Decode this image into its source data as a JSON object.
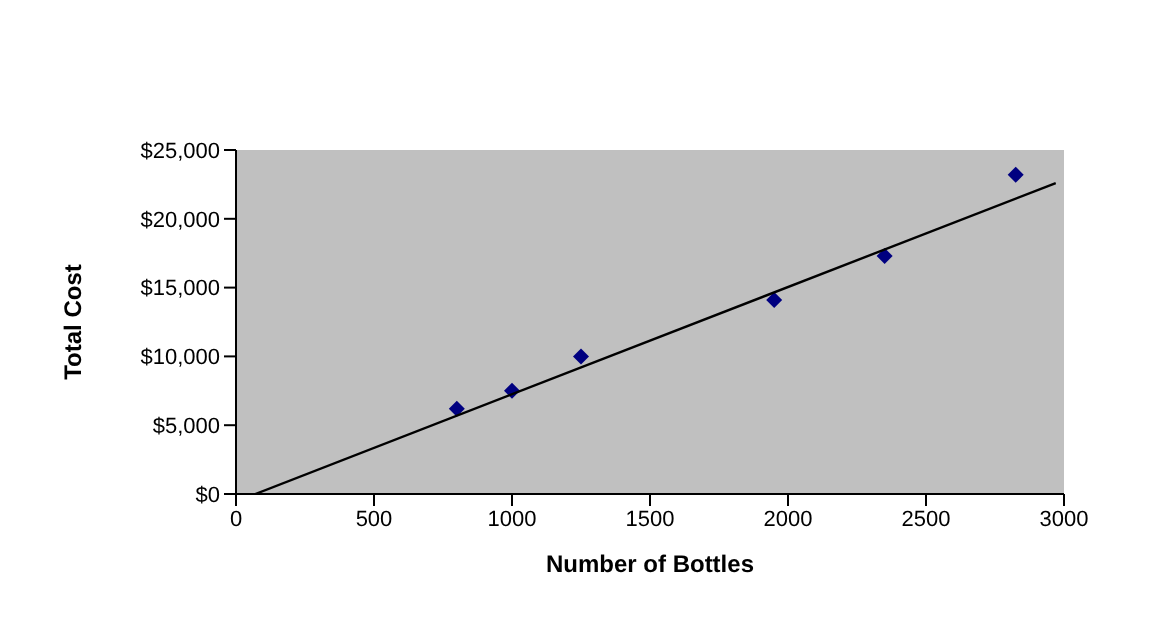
{
  "chart_data": {
    "type": "scatter",
    "xlabel": "Number of Bottles",
    "ylabel": "Total Cost",
    "xlim": [
      0,
      3000
    ],
    "xticks": [
      0,
      500,
      1000,
      1500,
      2000,
      2500,
      3000
    ],
    "ylim": [
      0,
      25000
    ],
    "yticks": [
      {
        "value": 0,
        "label": "$0"
      },
      {
        "value": 5000,
        "label": "$5,000"
      },
      {
        "value": 10000,
        "label": "$10,000"
      },
      {
        "value": 15000,
        "label": "$15,000"
      },
      {
        "value": 20000,
        "label": "$20,000"
      },
      {
        "value": 25000,
        "label": "$25,000"
      }
    ],
    "legend": false,
    "grid": false,
    "series": [
      {
        "marker": "diamond",
        "color": "#000080",
        "x": [
          800,
          1000,
          1250,
          1950,
          2350,
          2825
        ],
        "values": [
          6200,
          7500,
          10000,
          14100,
          17300,
          23200
        ]
      },
      {
        "type": "line",
        "marker": "none",
        "color": "#000000",
        "x": [
          70,
          2970
        ],
        "values": [
          0,
          22600
        ]
      }
    ]
  }
}
